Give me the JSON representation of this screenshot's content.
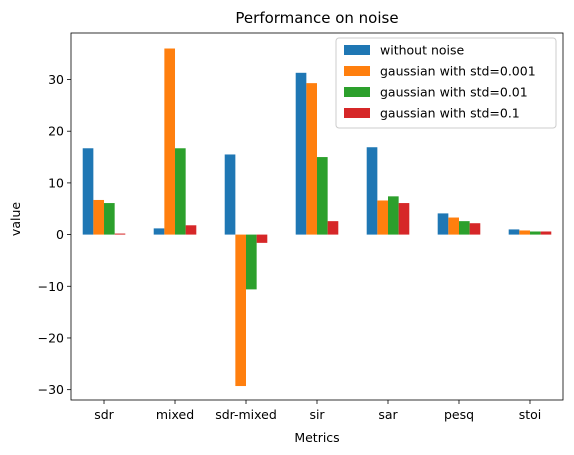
{
  "chart_data": {
    "type": "bar",
    "title": "Performance on noise",
    "xlabel": "Metrics",
    "ylabel": "value",
    "categories": [
      "sdr",
      "mixed",
      "sdr-mixed",
      "sir",
      "sar",
      "pesq",
      "stoi"
    ],
    "ylim": [
      -32,
      39
    ],
    "yticks": [
      -30,
      -20,
      -10,
      0,
      10,
      20,
      30
    ],
    "ytick_labels": [
      "−30",
      "−20",
      "−10",
      "0",
      "10",
      "20",
      "30"
    ],
    "legend_position": "top-right",
    "grid": false,
    "series": [
      {
        "name": "without noise",
        "color": "#1f77b4",
        "values": [
          16.7,
          1.2,
          15.5,
          31.3,
          16.9,
          4.1,
          1.0
        ]
      },
      {
        "name": "gaussian with std=0.001",
        "color": "#ff7f0e",
        "values": [
          6.7,
          36.0,
          -29.3,
          29.3,
          6.6,
          3.3,
          0.8
        ]
      },
      {
        "name": "gaussian with std=0.01",
        "color": "#2ca02c",
        "values": [
          6.1,
          16.7,
          -10.6,
          15.0,
          7.4,
          2.6,
          0.6
        ]
      },
      {
        "name": "gaussian with std=0.1",
        "color": "#d62728",
        "values": [
          0.2,
          1.8,
          -1.6,
          2.6,
          6.1,
          2.2,
          0.6
        ]
      }
    ]
  }
}
